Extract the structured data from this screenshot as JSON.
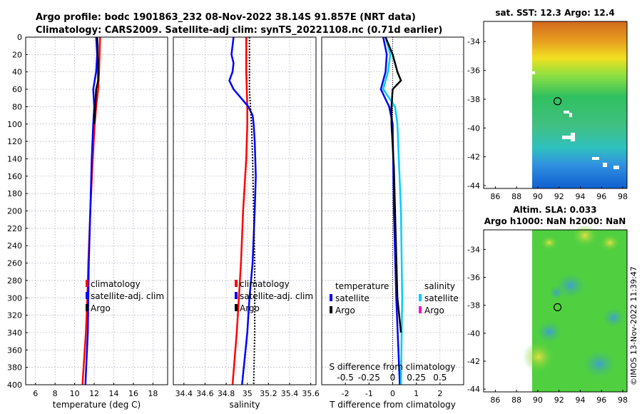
{
  "header": {
    "title1": "Argo profile: bodc 1901863_232 08-Nov-2022 38.14S 91.857E (NRT data)",
    "title2": "Climatology: CARS2009. Satellite-adj clim: synTS_20221108.nc (0.71d earlier)",
    "imos_stamp": "©IMOS 13-Nov-2022 11:39:47"
  },
  "colors": {
    "climatology": "#ff0000",
    "satellite": "#0000ff",
    "argo": "#000000",
    "sal_satellite": "#00ccff",
    "sal_argo": "#ff00cc",
    "grid": "#b8b8c8"
  },
  "chart_data": [
    {
      "type": "line",
      "name": "temperature-profile",
      "xlabel": "temperature (deg C)",
      "ylabel": "",
      "xlim": [
        5,
        19.5
      ],
      "ylim": [
        400,
        0
      ],
      "xticks": [
        "6",
        "8",
        "10",
        "12",
        "14",
        "16",
        "18"
      ],
      "yticks": [
        "0",
        "20",
        "40",
        "60",
        "80",
        "100",
        "120",
        "140",
        "160",
        "180",
        "200",
        "220",
        "240",
        "260",
        "280",
        "300",
        "320",
        "340",
        "360",
        "380",
        "400"
      ],
      "ytick_values": [
        0,
        20,
        40,
        60,
        80,
        100,
        120,
        140,
        160,
        180,
        200,
        220,
        240,
        260,
        280,
        300,
        320,
        340,
        360,
        380,
        400
      ],
      "xtick_values": [
        6,
        8,
        10,
        12,
        14,
        16,
        18
      ],
      "legend": [
        "climatology",
        "satellite-adj. clim",
        "Argo"
      ],
      "series": [
        {
          "name": "climatology",
          "color": "#ff0000",
          "depth": [
            0,
            20,
            40,
            60,
            80,
            100,
            140,
            200,
            260,
            300,
            340,
            400
          ],
          "values": [
            12.6,
            12.55,
            12.5,
            12.4,
            12.2,
            12.05,
            11.85,
            11.6,
            11.4,
            11.3,
            11.15,
            10.8
          ]
        },
        {
          "name": "satellite-adj. clim",
          "color": "#0000ff",
          "depth": [
            0,
            20,
            40,
            60,
            80,
            100,
            140,
            200,
            260,
            300,
            340,
            400
          ],
          "values": [
            12.2,
            12.3,
            12.2,
            11.9,
            12.0,
            11.9,
            11.75,
            11.6,
            11.45,
            11.4,
            11.35,
            11.1
          ]
        },
        {
          "name": "Argo",
          "color": "#000000",
          "depth": [
            0,
            10,
            20,
            30,
            40,
            50,
            60,
            70,
            80,
            90,
            100
          ],
          "values": [
            12.3,
            12.35,
            12.35,
            12.4,
            12.4,
            12.4,
            12.2,
            12.15,
            12.1,
            12.05,
            12.0
          ]
        }
      ]
    },
    {
      "type": "line",
      "name": "salinity-profile",
      "xlabel": "salinity",
      "ylabel": "",
      "xlim": [
        34.3,
        35.65
      ],
      "ylim": [
        400,
        0
      ],
      "xticks": [
        "34.4",
        "34.6",
        "34.8",
        "35",
        "35.2",
        "35.4",
        "35.6"
      ],
      "xtick_values": [
        34.4,
        34.6,
        34.8,
        35.0,
        35.2,
        35.4,
        35.6
      ],
      "legend": [
        "climatology",
        "satellite-adj. clim",
        "Argo"
      ],
      "series": [
        {
          "name": "climatology",
          "color": "#ff0000",
          "depth": [
            0,
            40,
            80,
            100,
            140,
            200,
            260,
            300,
            340,
            400
          ],
          "values": [
            34.99,
            34.99,
            35.0,
            35.0,
            34.99,
            34.96,
            34.94,
            34.92,
            34.9,
            34.86
          ],
          "dotted_note": "dotted black near 35.02"
        },
        {
          "name": "satellite-adj. clim",
          "color": "#0000ff",
          "depth": [
            0,
            10,
            20,
            30,
            40,
            50,
            60,
            70,
            80,
            90,
            100,
            120,
            160,
            200,
            260,
            300,
            340,
            400
          ],
          "values": [
            34.87,
            34.86,
            34.85,
            34.87,
            34.86,
            34.83,
            34.87,
            34.94,
            35.01,
            35.05,
            35.06,
            35.07,
            35.08,
            35.07,
            35.05,
            35.02,
            35.0,
            34.95
          ]
        },
        {
          "name": "Argo (dotted)",
          "color": "#000000",
          "depth": [
            0,
            40,
            60,
            80,
            100,
            140,
            200,
            260,
            300,
            340,
            400
          ],
          "values": [
            35.02,
            35.02,
            35.02,
            35.03,
            35.04,
            35.05,
            35.06,
            35.07,
            35.07,
            35.07,
            35.06
          ]
        }
      ]
    },
    {
      "type": "line",
      "name": "difference-profile",
      "xlabel": "T difference from climatology",
      "top_label": "S difference from climatology",
      "xlim": [
        -3,
        3
      ],
      "ylim": [
        400,
        0
      ],
      "xticks": [
        "-2",
        "-1",
        "0",
        "1",
        "2"
      ],
      "xtick_values": [
        -2,
        -1,
        0,
        1,
        2
      ],
      "sticks": [
        "-0.5",
        "-0.25",
        "0",
        "0.25",
        "0.5"
      ],
      "stick_positions": [
        -2,
        -1,
        0,
        1,
        2
      ],
      "legend_left": [
        "temperature",
        "satellite",
        "Argo"
      ],
      "legend_right": [
        "salinity",
        "satellite",
        "Argo"
      ],
      "series": [
        {
          "name": "T satellite",
          "color": "#0000ff",
          "depth": [
            0,
            20,
            40,
            60,
            80,
            100,
            200,
            300,
            400
          ],
          "values": [
            -0.4,
            -0.25,
            -0.3,
            -0.5,
            -0.15,
            0.0,
            0.05,
            0.15,
            0.3
          ]
        },
        {
          "name": "S satellite",
          "color": "#00ccff",
          "depth": [
            0,
            20,
            40,
            60,
            80,
            100,
            200,
            300,
            400
          ],
          "values": [
            -0.3,
            -0.1,
            -0.2,
            -0.4,
            0.1,
            0.2,
            0.35,
            0.4,
            0.35
          ]
        },
        {
          "name": "T Argo",
          "color": "#000000",
          "depth": [
            0,
            20,
            40,
            50,
            60,
            80,
            100,
            150,
            200,
            300,
            340
          ],
          "values": [
            -0.3,
            0.0,
            0.2,
            0.35,
            0.0,
            -0.05,
            -0.05,
            0.05,
            0.1,
            0.2,
            0.35
          ]
        }
      ]
    }
  ],
  "maps": {
    "top": {
      "title": "sat. SST: 12.3 Argo: 12.4",
      "yticks": [
        "-34",
        "-36",
        "-38",
        "-40",
        "-42",
        "-44"
      ],
      "xticks": [
        "86",
        "88",
        "90",
        "92",
        "94",
        "96",
        "98"
      ]
    },
    "bottom": {
      "title1": "Altim. SLA: 0.033",
      "title2": "Argo h1000: NaN h2000: NaN",
      "yticks": [
        "-34",
        "-36",
        "-38",
        "-40",
        "-42",
        "-44"
      ],
      "xticks": [
        "86",
        "88",
        "90",
        "92",
        "94",
        "96",
        "98"
      ]
    }
  }
}
